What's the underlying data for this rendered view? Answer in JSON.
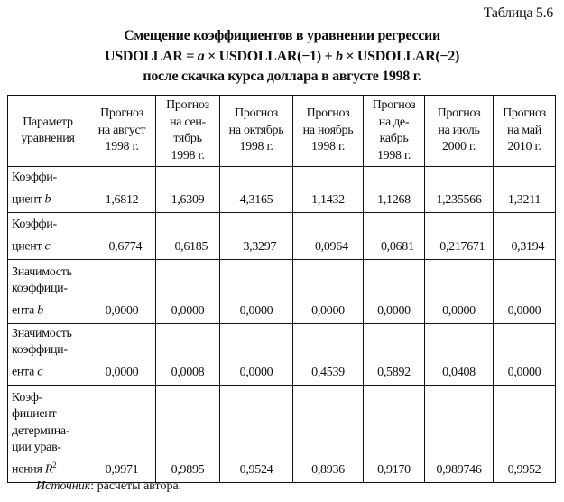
{
  "table_number": "Таблица 5.6",
  "title_lines": [
    "Смещение коэффициентов в уравнении регрессии",
    {
      "p1": "USDOLLAR = ",
      "i1": "a",
      "p2": " × USDOLLAR(−1) + ",
      "i2": "b",
      "p3": " × USDOLLAR(−2)"
    },
    "после скачка курса доллара в августе 1998 г."
  ],
  "headers": [
    [
      "Параметр",
      "уравнения"
    ],
    [
      "Прогноз",
      "на август",
      "1998 г."
    ],
    [
      "Прогноз",
      "на сен-",
      "тябрь",
      "1998 г."
    ],
    [
      "Прогноз",
      "на октябрь",
      "1998 г."
    ],
    [
      "Прогноз",
      "на ноябрь",
      "1998 г."
    ],
    [
      "Прогноз",
      "на де-",
      "кабрь",
      "1998 г."
    ],
    [
      "Прогноз",
      "на июль",
      "2000 г."
    ],
    [
      "Прогноз",
      "на май",
      "2010 г."
    ]
  ],
  "rows": [
    {
      "label": [
        "Коэффи-"
      ],
      "label_last": "циент ",
      "label_italic": "b",
      "label_sup": "",
      "values": [
        "1,6812",
        "1,6309",
        "4,3165",
        "1,1432",
        "1,1268",
        "1,235566",
        "1,3211"
      ]
    },
    {
      "label": [
        "Коэффи-"
      ],
      "label_last": "циент ",
      "label_italic": "c",
      "label_sup": "",
      "values": [
        "−0,6774",
        "−0,6185",
        "−3,3297",
        "−0,0964",
        "−0,0681",
        "−0,217671",
        "−0,3194"
      ]
    },
    {
      "label": [
        "Значимость",
        "коэффици-"
      ],
      "label_last": "ента ",
      "label_italic": "b",
      "label_sup": "",
      "values": [
        "0,0000",
        "0,0000",
        "0,0000",
        "0,0000",
        "0,0000",
        "0,0000",
        "0,0000"
      ]
    },
    {
      "label": [
        "Значимость",
        "коэффици-"
      ],
      "label_last": "ента ",
      "label_italic": "c",
      "label_sup": "",
      "values": [
        "0,0000",
        "0,0008",
        "0,0000",
        "0,4539",
        "0,5892",
        "0,0408",
        "0,0000"
      ]
    },
    {
      "label": [
        "Коэф-",
        "фициент",
        "детермина-",
        "ции урав-"
      ],
      "label_last": "нения ",
      "label_italic": "R",
      "label_sup": "2",
      "values": [
        "0,9971",
        "0,9895",
        "0,9524",
        "0,8936",
        "0,9170",
        "0,989746",
        "0,9952"
      ]
    }
  ],
  "source": {
    "label": "Источник",
    "text": ": расчеты автора."
  }
}
